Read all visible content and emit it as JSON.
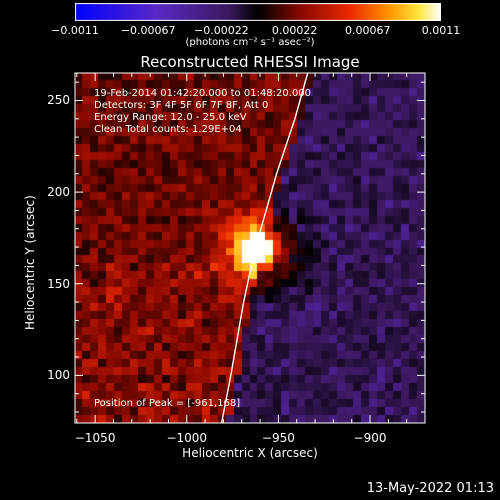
{
  "colorbar": {
    "ticks": [
      "−0.0011",
      "−0.00067",
      "−0.00022",
      "0.00022",
      "0.00067",
      "0.0011"
    ],
    "unit_text": "(photons cm⁻² s⁻¹ asec⁻²)",
    "range": [
      -0.0011,
      0.0011
    ],
    "colormap": "rhessi-bipolar"
  },
  "info_lines": [
    "19-Feb-2014 01:42:20.000 to 01:48:20.000",
    "Detectors: 3F 4F 5F 6F 7F 8F, Att 0",
    "Energy Range: 12.0 - 25.0 keV",
    "Clean     Total counts: 1.29E+04"
  ],
  "peak_label": "Position of Peak = [-961,168]",
  "footer_date": "13-May-2022 01:13",
  "chart_data": {
    "type": "heatmap",
    "title": "Reconstructed RHESSI Image",
    "xlabel": "Heliocentric X (arcsec)",
    "ylabel": "Heliocentric Y (arcsec)",
    "xlim": [
      -1061,
      -870
    ],
    "ylim": [
      74,
      265
    ],
    "x_ticks": [
      "−1050",
      "−1000",
      "−950",
      "−900"
    ],
    "x_tick_values": [
      -1050,
      -1000,
      -950,
      -900
    ],
    "y_ticks": [
      "100",
      "150",
      "200",
      "250"
    ],
    "y_tick_values": [
      100,
      150,
      200,
      250
    ],
    "peak": {
      "x": -961,
      "y": 168,
      "value": 0.0011
    },
    "limb_points": [
      [
        -981,
        74
      ],
      [
        -976,
        100
      ],
      [
        -969,
        140
      ],
      [
        -963,
        168
      ],
      [
        -951,
        210
      ],
      [
        -941,
        240
      ],
      [
        -934,
        265
      ]
    ],
    "colors": {
      "background_neg": "#3b1a55",
      "limb": "#ffffff"
    }
  }
}
